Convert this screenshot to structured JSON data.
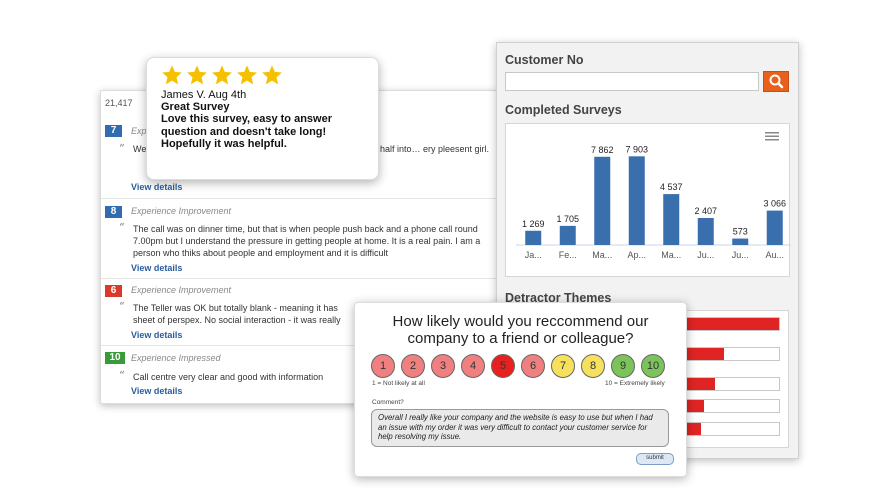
{
  "reviews": {
    "total": "21,417",
    "items": [
      {
        "score": "7",
        "color": "#2f6db0",
        "category": "Experience",
        "body": "We… she was probably a little bit l… our son we were putting half into… ery pleesent girl.",
        "more": "View details"
      },
      {
        "score": "8",
        "color": "#2f6db0",
        "category": "Experience Improvement",
        "body": "The call was on dinner time, but that is when people push back and a phone call round 7.00pm but I understand the pressure in getting people at home. It is a real pain. I am a person who thiks about people and employment and it is difficult",
        "more": "View details"
      },
      {
        "score": "6",
        "color": "#d83a2e",
        "category": "Experience Improvement",
        "body": "The Teller was OK but totally blank - meaning it has sheet of perspex. No social interaction - it was really",
        "more": "View details"
      },
      {
        "score": "10",
        "color": "#3a9a3a",
        "category": "Experience Impressed",
        "body": "Call centre very clear and good with information",
        "more": "View details"
      }
    ]
  },
  "star_review": {
    "stars": 5,
    "author": "James V. Aug 4th",
    "title": "Great Survey",
    "text": "Love this survey, easy to answer question and doesn't take long! Hopefully it was helpful."
  },
  "panel": {
    "customer_label": "Customer No",
    "search_icon": "search-icon",
    "completed_label": "Completed Surveys",
    "detractor_label": "Detractor Themes",
    "menu_icon": "hamburger-menu-icon"
  },
  "chart_data": {
    "type": "bar",
    "categories": [
      "Ja...",
      "Fe...",
      "Ma...",
      "Ap...",
      "Ma...",
      "Ju...",
      "Ju...",
      "Au..."
    ],
    "values": [
      1269,
      1705,
      7862,
      7903,
      4537,
      2407,
      573,
      3066
    ],
    "value_labels": [
      "1 269",
      "1 705",
      "7 862",
      "7 903",
      "4 537",
      "2 407",
      "573",
      "3 066"
    ],
    "ylim": [
      0,
      9000
    ],
    "bar_color": "#3a6fad"
  },
  "detractor_themes": {
    "fill_color": "#e02424",
    "levels": [
      1.0,
      0.4,
      0.3,
      0.18,
      0.15
    ]
  },
  "nps": {
    "question": "How likely would you reccommend our company to a friend or colleague?",
    "buttons": [
      {
        "label": "1",
        "color": "#f08080"
      },
      {
        "label": "2",
        "color": "#f08080"
      },
      {
        "label": "3",
        "color": "#f08080"
      },
      {
        "label": "4",
        "color": "#f08080"
      },
      {
        "label": "5",
        "color": "#e8211f"
      },
      {
        "label": "6",
        "color": "#f08080"
      },
      {
        "label": "7",
        "color": "#f6e05e"
      },
      {
        "label": "8",
        "color": "#f6e05e"
      },
      {
        "label": "9",
        "color": "#7cc35b"
      },
      {
        "label": "10",
        "color": "#7cc35b"
      }
    ],
    "left_label": "1 = Not likely at all",
    "right_label": "10 = Extremely likely",
    "comment_label": "Comment?",
    "comment_text": "Overall I really like your company and the website is easy to use but when I had an issue with my order it was very difficult to contact your customer service for help resolving my issue.",
    "submit_label": "submit"
  }
}
